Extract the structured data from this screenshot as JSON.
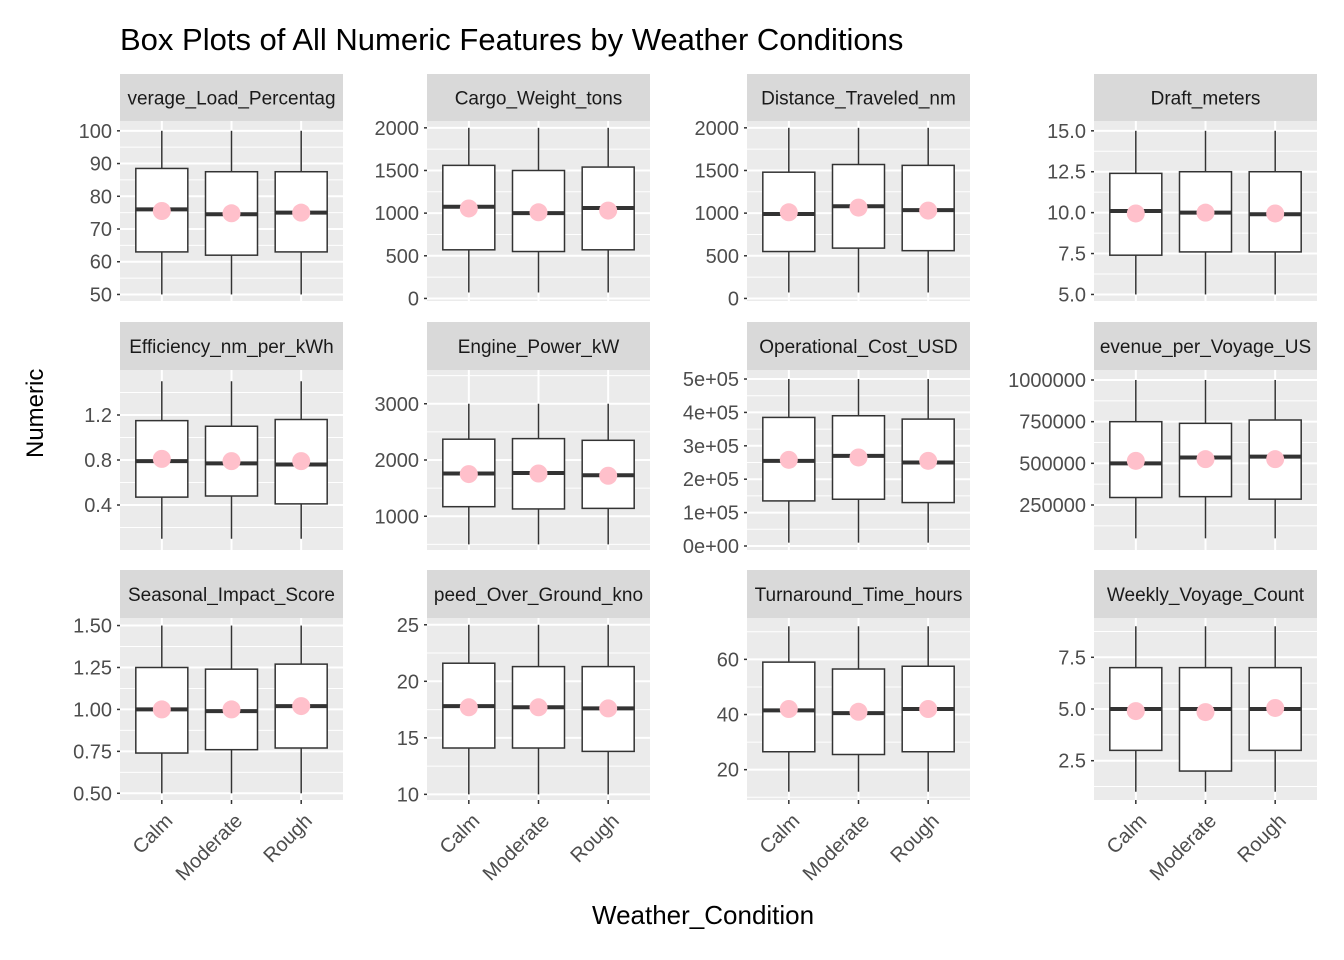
{
  "title": "Box Plots of All Numeric Features by Weather Conditions",
  "ylabel": "Numeric",
  "xlabel": "Weather_Condition",
  "colors": {
    "panel_bg": "#EBEBEB",
    "strip_bg": "#D9D9D9",
    "grid": "#FFFFFF",
    "box": "#333333",
    "mean_point": "#FFC0CB"
  },
  "chart_data": {
    "type": "box",
    "categories": [
      "Calm",
      "Moderate",
      "Rough"
    ],
    "panels": [
      {
        "label": "Average_Load_Percentage",
        "strip_text": "verage_Load_Percentag",
        "ylim": [
          48,
          103
        ],
        "ticks": [
          50,
          60,
          70,
          80,
          90,
          100
        ],
        "tick_labels": [
          "50",
          "60",
          "70",
          "80",
          "90",
          "100"
        ],
        "boxes": [
          {
            "min": 50,
            "q1": 63,
            "median": 76,
            "q3": 88.5,
            "max": 100,
            "mean": 75.5
          },
          {
            "min": 50,
            "q1": 62,
            "median": 74.5,
            "q3": 87.5,
            "max": 100,
            "mean": 74.8
          },
          {
            "min": 50,
            "q1": 63,
            "median": 75,
            "q3": 87.5,
            "max": 100,
            "mean": 75
          }
        ]
      },
      {
        "label": "Cargo_Weight_tons",
        "strip_text": "Cargo_Weight_tons",
        "ylim": [
          -30,
          2080
        ],
        "ticks": [
          0,
          500,
          1000,
          1500,
          2000
        ],
        "tick_labels": [
          "0",
          "500",
          "1000",
          "1500",
          "2000"
        ],
        "boxes": [
          {
            "min": 70,
            "q1": 570,
            "median": 1075,
            "q3": 1560,
            "max": 2000,
            "mean": 1055
          },
          {
            "min": 70,
            "q1": 550,
            "median": 1000,
            "q3": 1500,
            "max": 2000,
            "mean": 1010
          },
          {
            "min": 70,
            "q1": 570,
            "median": 1060,
            "q3": 1540,
            "max": 2000,
            "mean": 1030
          }
        ]
      },
      {
        "label": "Distance_Traveled_nm",
        "strip_text": "Distance_Traveled_nm",
        "ylim": [
          -30,
          2080
        ],
        "ticks": [
          0,
          500,
          1000,
          1500,
          2000
        ],
        "tick_labels": [
          "0",
          "500",
          "1000",
          "1500",
          "2000"
        ],
        "boxes": [
          {
            "min": 70,
            "q1": 550,
            "median": 990,
            "q3": 1480,
            "max": 2000,
            "mean": 1010
          },
          {
            "min": 70,
            "q1": 590,
            "median": 1080,
            "q3": 1570,
            "max": 2000,
            "mean": 1065
          },
          {
            "min": 70,
            "q1": 560,
            "median": 1035,
            "q3": 1560,
            "max": 2000,
            "mean": 1030
          }
        ]
      },
      {
        "label": "Draft_meters",
        "strip_text": "Draft_meters",
        "ylim": [
          4.6,
          15.6
        ],
        "ticks": [
          5.0,
          7.5,
          10.0,
          12.5,
          15.0
        ],
        "tick_labels": [
          "5.0",
          "7.5",
          "10.0",
          "12.5",
          "15.0"
        ],
        "boxes": [
          {
            "min": 5,
            "q1": 7.4,
            "median": 10.1,
            "q3": 12.4,
            "max": 15,
            "mean": 9.95
          },
          {
            "min": 5,
            "q1": 7.6,
            "median": 10.0,
            "q3": 12.5,
            "max": 15,
            "mean": 10.0
          },
          {
            "min": 5,
            "q1": 7.6,
            "median": 9.9,
            "q3": 12.5,
            "max": 15,
            "mean": 9.95
          }
        ]
      },
      {
        "label": "Efficiency_nm_per_kWh",
        "strip_text": "Efficiency_nm_per_kWh",
        "ylim": [
          0.0,
          1.6
        ],
        "ticks": [
          0.4,
          0.8,
          1.2
        ],
        "tick_labels": [
          "0.4",
          "0.8",
          "1.2"
        ],
        "boxes": [
          {
            "min": 0.1,
            "q1": 0.47,
            "median": 0.79,
            "q3": 1.15,
            "max": 1.5,
            "mean": 0.81
          },
          {
            "min": 0.1,
            "q1": 0.48,
            "median": 0.77,
            "q3": 1.1,
            "max": 1.5,
            "mean": 0.79
          },
          {
            "min": 0.1,
            "q1": 0.41,
            "median": 0.76,
            "q3": 1.16,
            "max": 1.5,
            "mean": 0.79
          }
        ]
      },
      {
        "label": "Engine_Power_kW",
        "strip_text": "Engine_Power_kW",
        "ylim": [
          400,
          3600
        ],
        "ticks": [
          1000,
          2000,
          3000
        ],
        "tick_labels": [
          "1000",
          "2000",
          "3000"
        ],
        "boxes": [
          {
            "min": 500,
            "q1": 1170,
            "median": 1760,
            "q3": 2370,
            "max": 3000,
            "mean": 1750
          },
          {
            "min": 500,
            "q1": 1130,
            "median": 1770,
            "q3": 2380,
            "max": 3000,
            "mean": 1760
          },
          {
            "min": 500,
            "q1": 1140,
            "median": 1730,
            "q3": 2350,
            "max": 3000,
            "mean": 1720
          }
        ]
      },
      {
        "label": "Operational_Cost_USD",
        "strip_text": "Operational_Cost_USD",
        "ylim": [
          -12000,
          527000
        ],
        "ticks": [
          0,
          100000,
          200000,
          300000,
          400000,
          500000
        ],
        "tick_labels": [
          "0e+00",
          "1e+05",
          "2e+05",
          "3e+05",
          "4e+05",
          "5e+05"
        ],
        "boxes": [
          {
            "min": 10000,
            "q1": 135000,
            "median": 255000,
            "q3": 385000,
            "max": 500000,
            "mean": 258000
          },
          {
            "min": 10000,
            "q1": 140000,
            "median": 270000,
            "q3": 390000,
            "max": 500000,
            "mean": 265000
          },
          {
            "min": 10000,
            "q1": 130000,
            "median": 250000,
            "q3": 380000,
            "max": 500000,
            "mean": 255000
          }
        ]
      },
      {
        "label": "Revenue_per_Voyage_USD",
        "strip_text": "evenue_per_Voyage_US",
        "ylim": [
          -20000,
          1060000
        ],
        "ticks": [
          250000,
          500000,
          750000,
          1000000
        ],
        "tick_labels": [
          "250000",
          "500000",
          "750000",
          "1000000"
        ],
        "boxes": [
          {
            "min": 50000,
            "q1": 295000,
            "median": 500000,
            "q3": 750000,
            "max": 1000000,
            "mean": 515000
          },
          {
            "min": 50000,
            "q1": 300000,
            "median": 535000,
            "q3": 740000,
            "max": 1000000,
            "mean": 525000
          },
          {
            "min": 50000,
            "q1": 285000,
            "median": 540000,
            "q3": 760000,
            "max": 1000000,
            "mean": 525000
          }
        ]
      },
      {
        "label": "Seasonal_Impact_Score",
        "strip_text": "Seasonal_Impact_Score",
        "ylim": [
          0.46,
          1.545
        ],
        "ticks": [
          0.5,
          0.75,
          1.0,
          1.25,
          1.5
        ],
        "tick_labels": [
          "0.50",
          "0.75",
          "1.00",
          "1.25",
          "1.50"
        ],
        "boxes": [
          {
            "min": 0.5,
            "q1": 0.74,
            "median": 1.0,
            "q3": 1.25,
            "max": 1.5,
            "mean": 1.0
          },
          {
            "min": 0.5,
            "q1": 0.76,
            "median": 0.99,
            "q3": 1.24,
            "max": 1.5,
            "mean": 1.0
          },
          {
            "min": 0.5,
            "q1": 0.77,
            "median": 1.02,
            "q3": 1.27,
            "max": 1.5,
            "mean": 1.02
          }
        ]
      },
      {
        "label": "Speed_Over_Ground_knots",
        "strip_text": "peed_Over_Ground_kno",
        "ylim": [
          9.5,
          25.6
        ],
        "ticks": [
          10,
          15,
          20,
          25
        ],
        "tick_labels": [
          "10",
          "15",
          "20",
          "25"
        ],
        "boxes": [
          {
            "min": 10,
            "q1": 14.1,
            "median": 17.8,
            "q3": 21.6,
            "max": 25,
            "mean": 17.7
          },
          {
            "min": 10,
            "q1": 14.1,
            "median": 17.7,
            "q3": 21.3,
            "max": 25,
            "mean": 17.7
          },
          {
            "min": 10,
            "q1": 13.8,
            "median": 17.6,
            "q3": 21.3,
            "max": 25,
            "mean": 17.6
          }
        ]
      },
      {
        "label": "Turnaround_Time_hours",
        "strip_text": "Turnaround_Time_hours",
        "ylim": [
          9,
          75
        ],
        "ticks": [
          20,
          40,
          60
        ],
        "tick_labels": [
          "20",
          "40",
          "60"
        ],
        "boxes": [
          {
            "min": 12,
            "q1": 26.5,
            "median": 41.5,
            "q3": 59,
            "max": 72,
            "mean": 42
          },
          {
            "min": 12,
            "q1": 25.5,
            "median": 40.5,
            "q3": 56.5,
            "max": 72,
            "mean": 41
          },
          {
            "min": 12,
            "q1": 26.5,
            "median": 42,
            "q3": 57.5,
            "max": 72,
            "mean": 42
          }
        ]
      },
      {
        "label": "Weekly_Voyage_Count",
        "strip_text": "Weekly_Voyage_Count",
        "ylim": [
          0.6,
          9.4
        ],
        "ticks": [
          2.5,
          5.0,
          7.5
        ],
        "tick_labels": [
          "2.5",
          "5.0",
          "7.5"
        ],
        "boxes": [
          {
            "min": 1,
            "q1": 3,
            "median": 5,
            "q3": 7,
            "max": 9,
            "mean": 4.9
          },
          {
            "min": 1,
            "q1": 2,
            "median": 5,
            "q3": 7,
            "max": 9,
            "mean": 4.85
          },
          {
            "min": 1,
            "q1": 3,
            "median": 5,
            "q3": 7,
            "max": 9,
            "mean": 5.05
          }
        ]
      }
    ]
  }
}
